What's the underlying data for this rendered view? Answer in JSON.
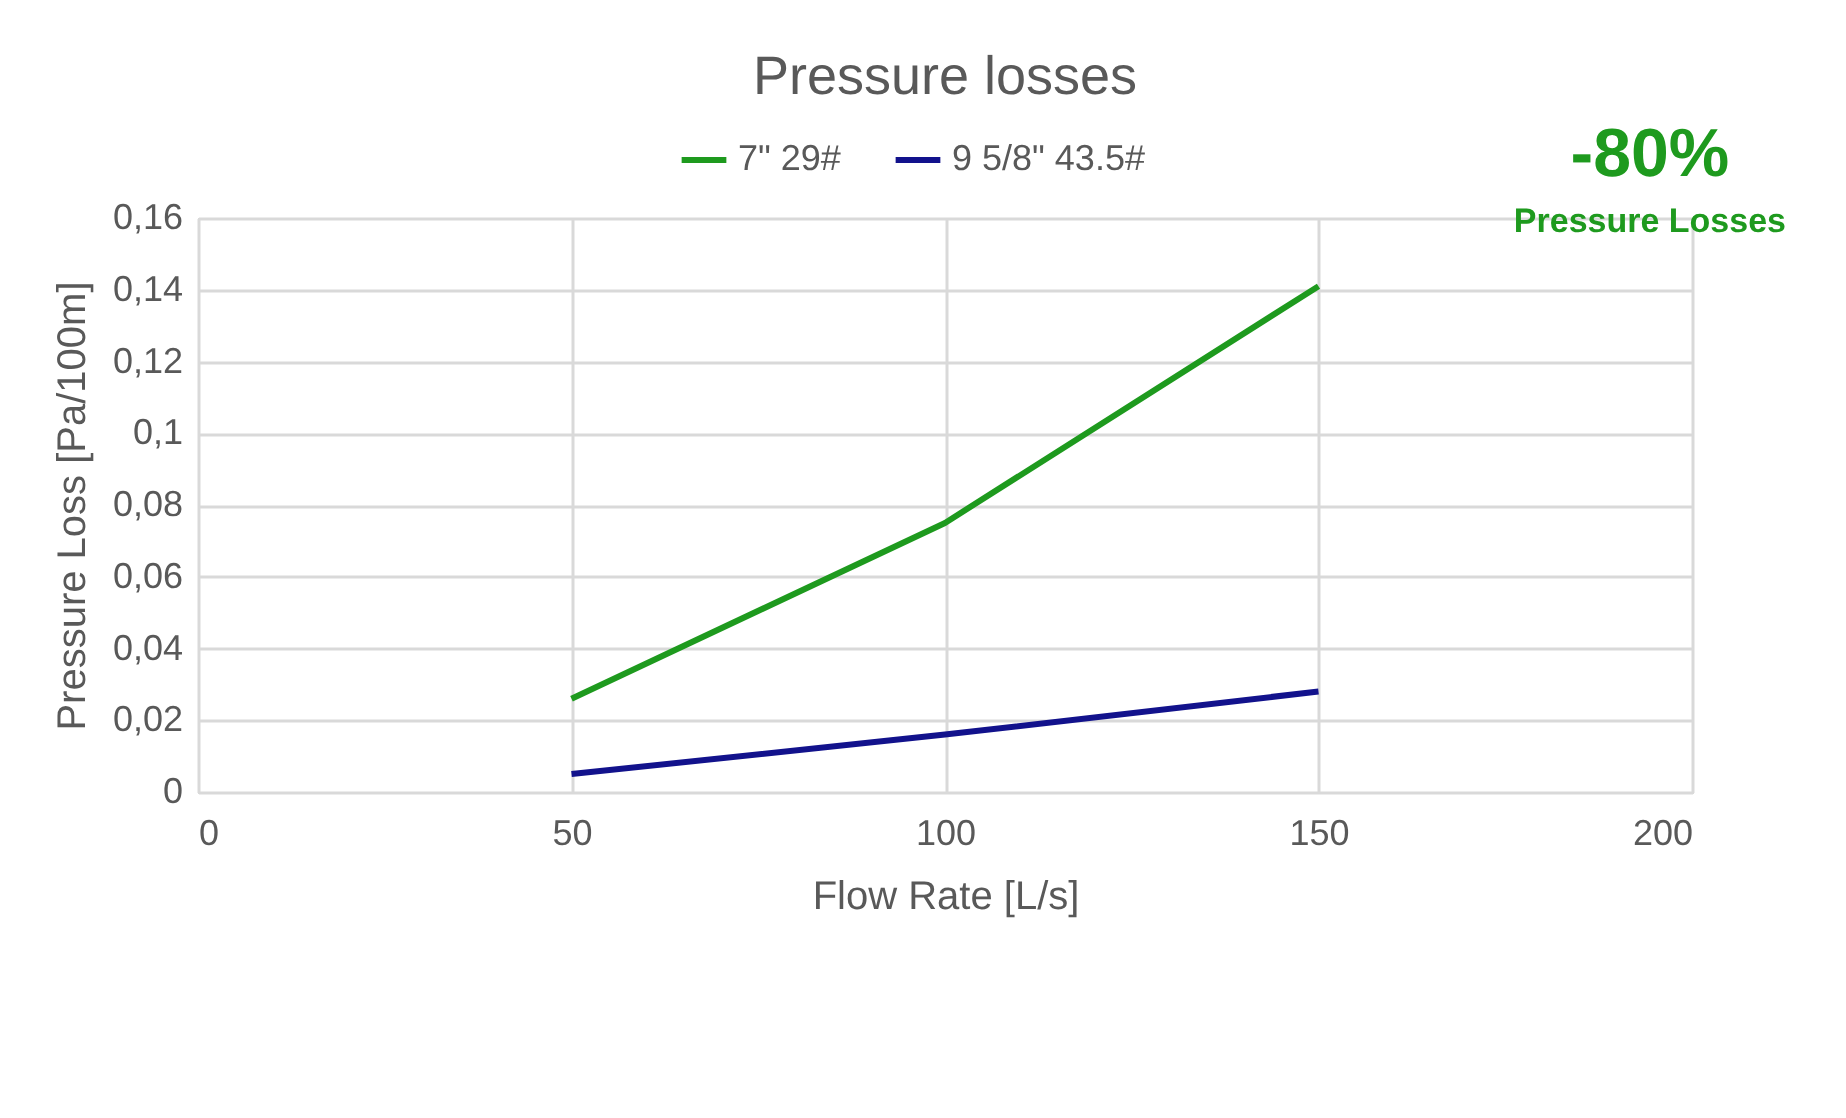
{
  "chart_data": {
    "type": "line",
    "title": "Pressure losses",
    "xlabel": "Flow Rate [L/s]",
    "ylabel": "Pressure Loss [Pa/100m]",
    "x": [
      50,
      100,
      150
    ],
    "series": [
      {
        "name": "7\" 29#",
        "color": "#1e9a1e",
        "values": [
          0.026,
          0.075,
          0.141
        ]
      },
      {
        "name": "9 5/8\" 43.5#",
        "color": "#12128c",
        "values": [
          0.005,
          0.016,
          0.028
        ]
      }
    ],
    "xlim": [
      0,
      200
    ],
    "xticks": [
      0,
      50,
      100,
      150,
      200
    ],
    "ylim": [
      0,
      0.16
    ],
    "yticks": [
      0,
      {
        "value": 0.02,
        "label": "0,02"
      },
      {
        "value": 0.04,
        "label": "0,04"
      },
      {
        "value": 0.06,
        "label": "0,06"
      },
      {
        "value": 0.08,
        "label": "0,08"
      },
      {
        "value": 0.1,
        "label": "0,1"
      },
      {
        "value": 0.12,
        "label": "0,12"
      },
      {
        "value": 0.14,
        "label": "0,14"
      },
      {
        "value": 0.16,
        "label": "0,16"
      }
    ],
    "grid": true,
    "legend": "top",
    "marker": "none",
    "line_style": "solid",
    "annotations": [
      "-80%",
      "Pressure Losses"
    ]
  }
}
